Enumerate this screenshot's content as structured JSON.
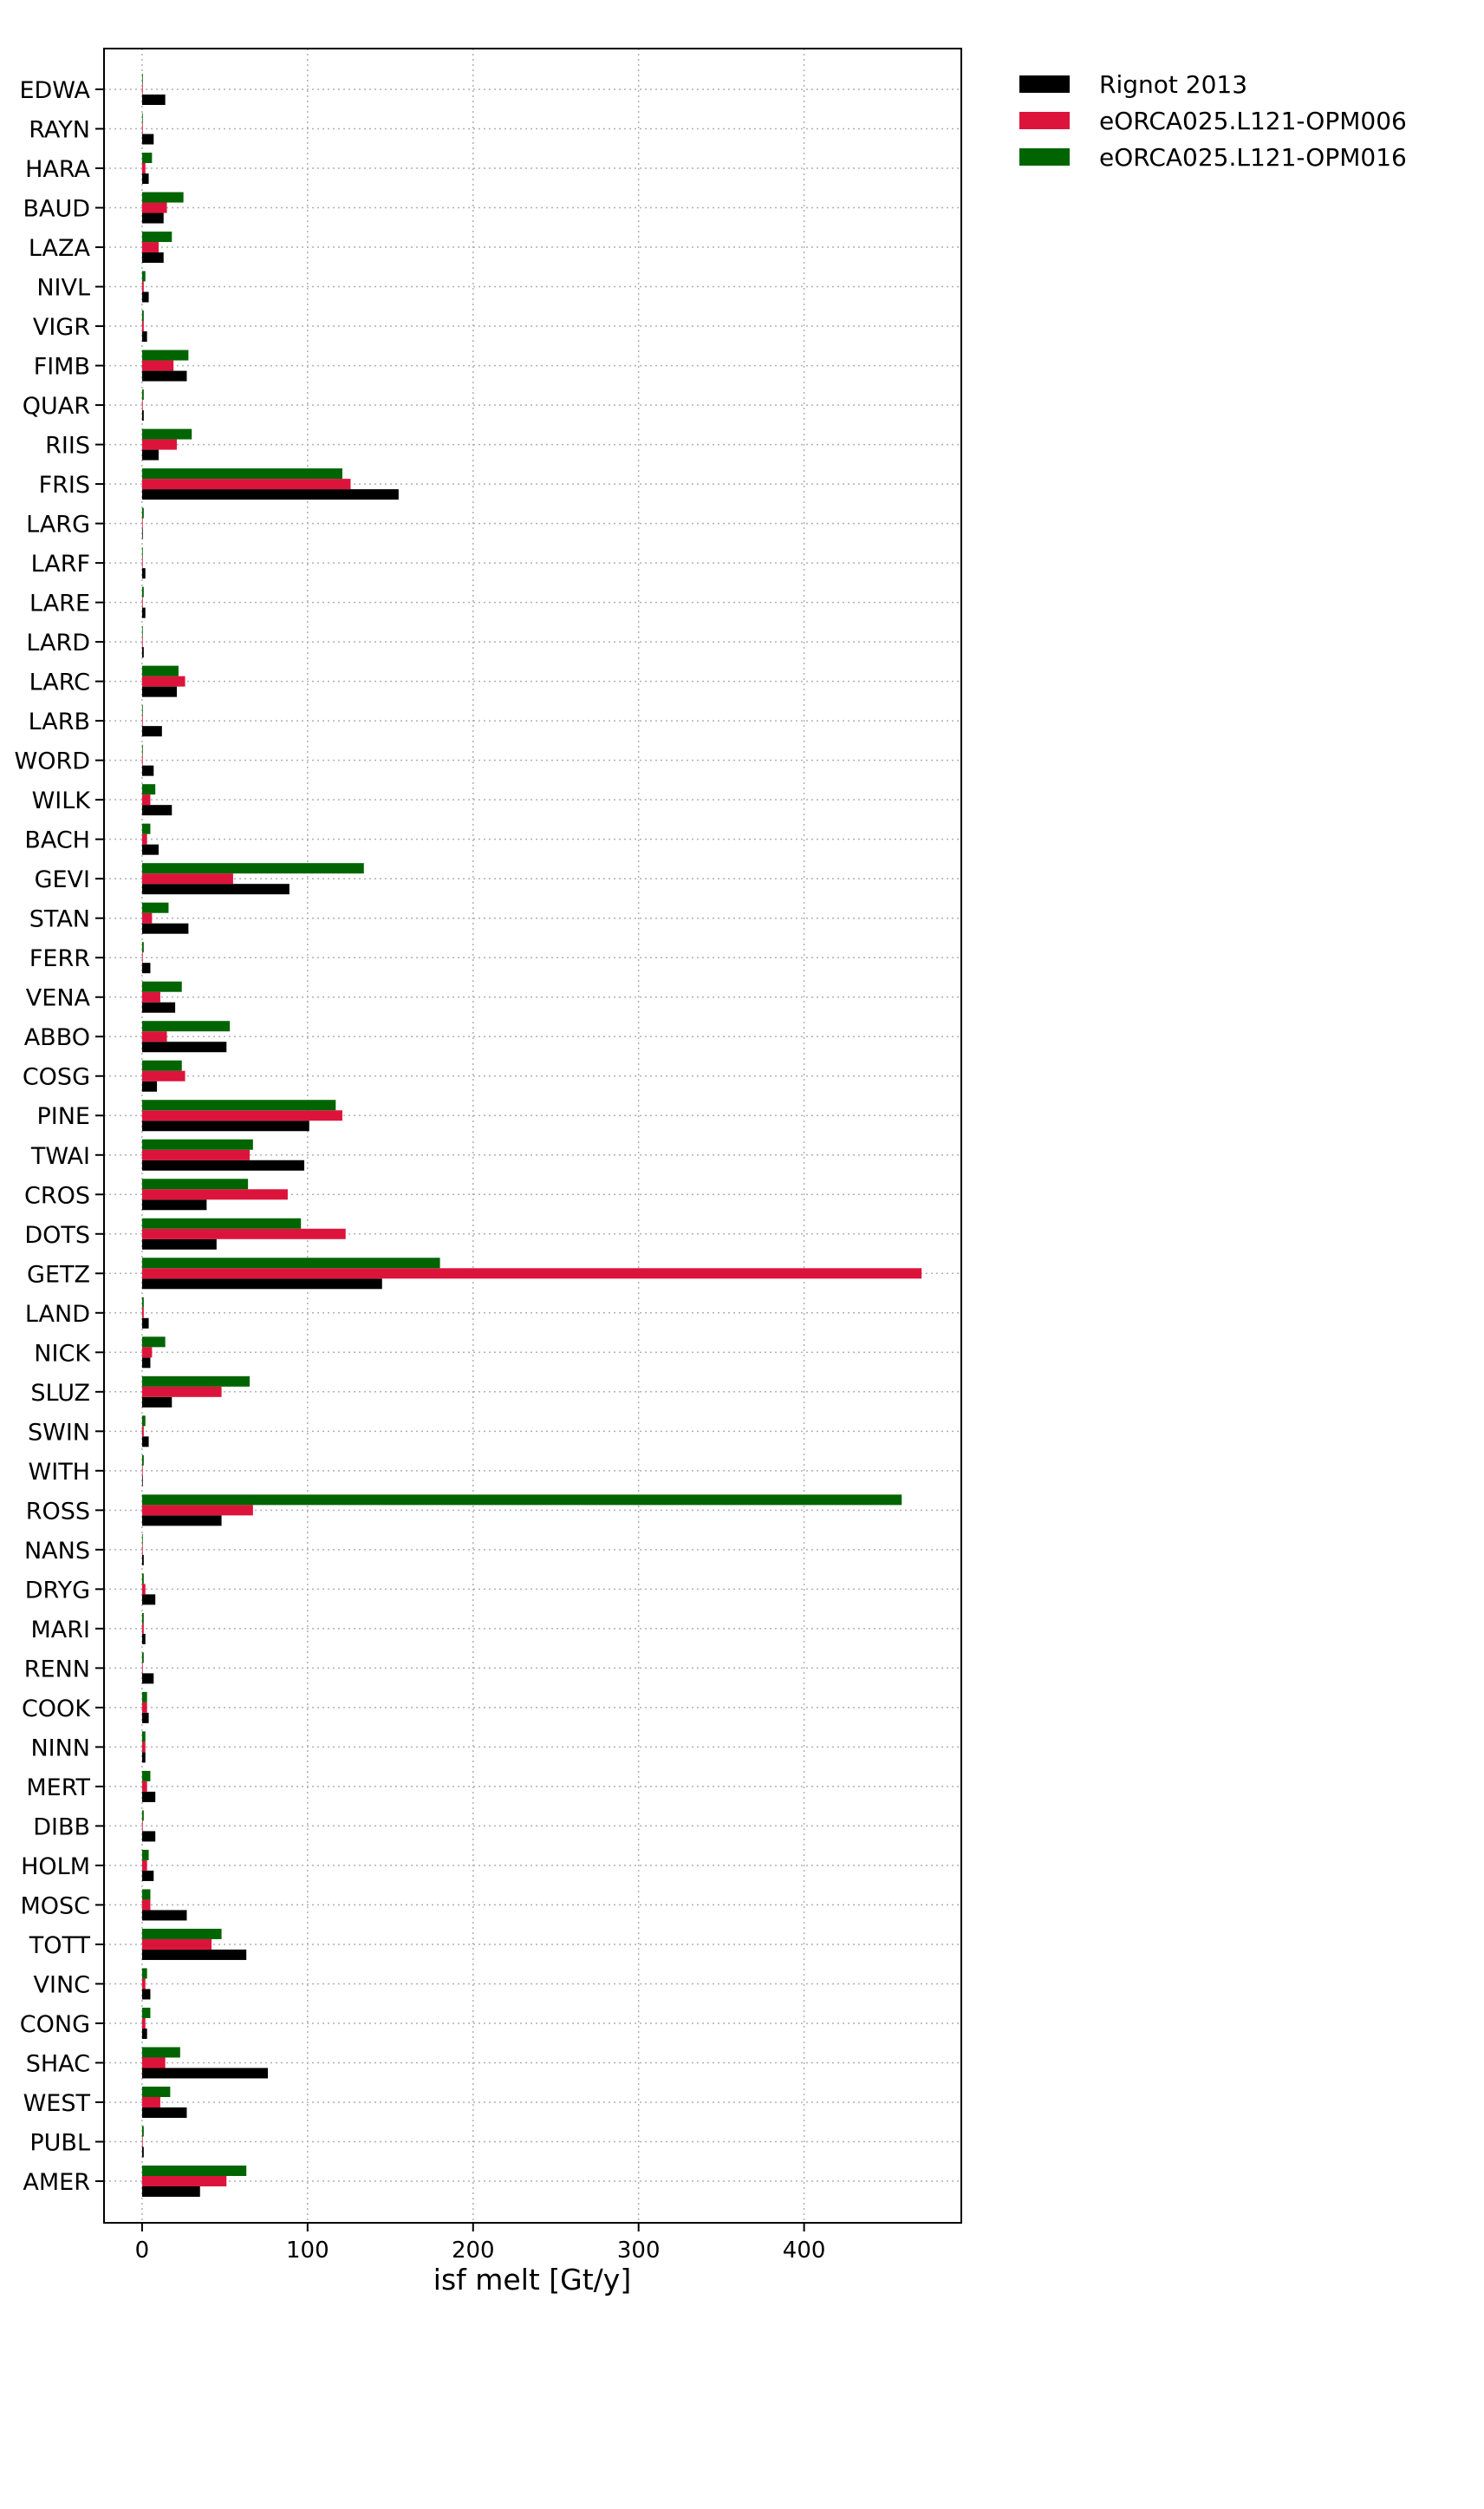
{
  "chart_data": {
    "type": "bar",
    "orientation": "horizontal",
    "title": "",
    "xlabel": "isf melt [Gt/y]",
    "ylabel": "",
    "xlim": [
      -23,
      495
    ],
    "xticks": [
      0,
      100,
      200,
      300,
      400
    ],
    "grid": true,
    "legend_position": "outside top-right",
    "categories": [
      "EDWA",
      "RAYN",
      "HARA",
      "BAUD",
      "LAZA",
      "NIVL",
      "VIGR",
      "FIMB",
      "QUAR",
      "RIIS",
      "FRIS",
      "LARG",
      "LARF",
      "LARE",
      "LARD",
      "LARC",
      "LARB",
      "WORD",
      "WILK",
      "BACH",
      "GEVI",
      "STAN",
      "FERR",
      "VENA",
      "ABBO",
      "COSG",
      "PINE",
      "TWAI",
      "CROS",
      "DOTS",
      "GETZ",
      "LAND",
      "NICK",
      "SLUZ",
      "SWIN",
      "WITH",
      "ROSS",
      "NANS",
      "DRYG",
      "MARI",
      "RENN",
      "COOK",
      "NINN",
      "MERT",
      "DIBB",
      "HOLM",
      "MOSC",
      "TOTT",
      "VINC",
      "CONG",
      "SHAC",
      "WEST",
      "PUBL",
      "AMER"
    ],
    "series": [
      {
        "name": "Rignot 2013",
        "color": "#000000",
        "values": [
          14,
          7,
          4,
          13,
          13,
          4,
          3,
          27,
          1,
          10,
          155,
          0,
          2,
          2,
          1,
          21,
          12,
          7,
          18,
          10,
          89,
          28,
          5,
          20,
          51,
          9,
          101,
          98,
          39,
          45,
          145,
          4,
          5,
          18,
          4,
          0,
          48,
          1,
          8,
          2,
          7,
          4,
          2,
          8,
          8,
          7,
          27,
          63,
          5,
          3,
          76,
          27,
          1,
          35
        ]
      },
      {
        "name": "eORCA025.L121-OPM006",
        "color": "#dc143c",
        "values": [
          0,
          0,
          2,
          15,
          10,
          1,
          1,
          19,
          0,
          21,
          126,
          0,
          0,
          0,
          0,
          26,
          0,
          0,
          5,
          3,
          55,
          6,
          0,
          11,
          15,
          26,
          121,
          65,
          88,
          123,
          471,
          1,
          6,
          48,
          1,
          0,
          67,
          0,
          2,
          1,
          0,
          3,
          2,
          3,
          0,
          3,
          5,
          42,
          2,
          2,
          14,
          11,
          0,
          51
        ]
      },
      {
        "name": "eORCA025.L121-OPM016",
        "color": "#006400",
        "values": [
          0,
          0,
          6,
          25,
          18,
          2,
          1,
          28,
          1,
          30,
          121,
          1,
          0,
          1,
          0,
          22,
          0,
          0,
          8,
          5,
          134,
          16,
          1,
          24,
          53,
          24,
          117,
          67,
          64,
          96,
          180,
          1,
          14,
          65,
          2,
          1,
          459,
          0,
          1,
          1,
          1,
          3,
          2,
          5,
          1,
          4,
          5,
          48,
          3,
          5,
          23,
          17,
          1,
          63
        ]
      }
    ]
  }
}
